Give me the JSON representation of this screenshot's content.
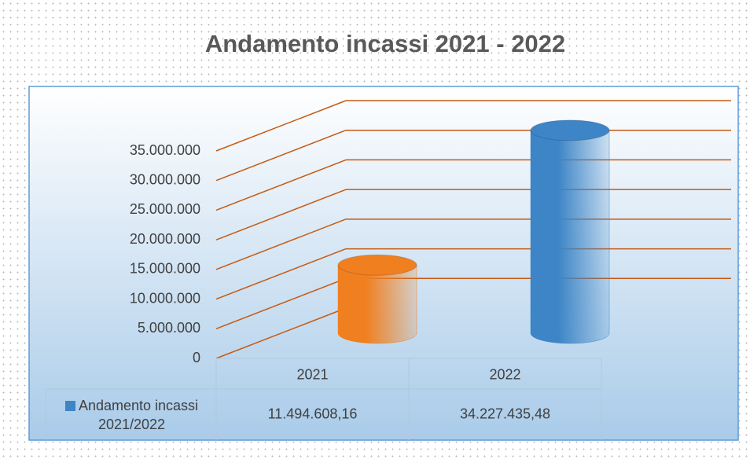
{
  "chart_data": {
    "type": "bar3d",
    "title": "Andamento incassi 2021 - 2022",
    "categories": [
      "2021",
      "2022"
    ],
    "series": [
      {
        "name": "Andamento incassi 2021/2022",
        "color": "#3d85c6",
        "point_colors": [
          "#f07f1f",
          "#3d85c6"
        ],
        "values": [
          11494608.16,
          34227435.48
        ],
        "value_labels": [
          "11.494.608,16",
          "34.227.435,48"
        ]
      }
    ],
    "ylim": [
      0,
      35000000
    ],
    "yticks": [
      0,
      {
        "value": 5000000,
        "label": "5.000.000"
      },
      {
        "value": 10000000,
        "label": "10.000.000"
      },
      {
        "value": 15000000,
        "label": "15.000.000"
      },
      {
        "value": 20000000,
        "label": "20.000.000"
      },
      {
        "value": 25000000,
        "label": "25.000.000"
      },
      {
        "value": 30000000,
        "label": "30.000.000"
      },
      {
        "value": 35000000,
        "label": "35.000.000"
      }
    ],
    "grid": true,
    "grid_color": "#c55a11",
    "data_table": true
  }
}
